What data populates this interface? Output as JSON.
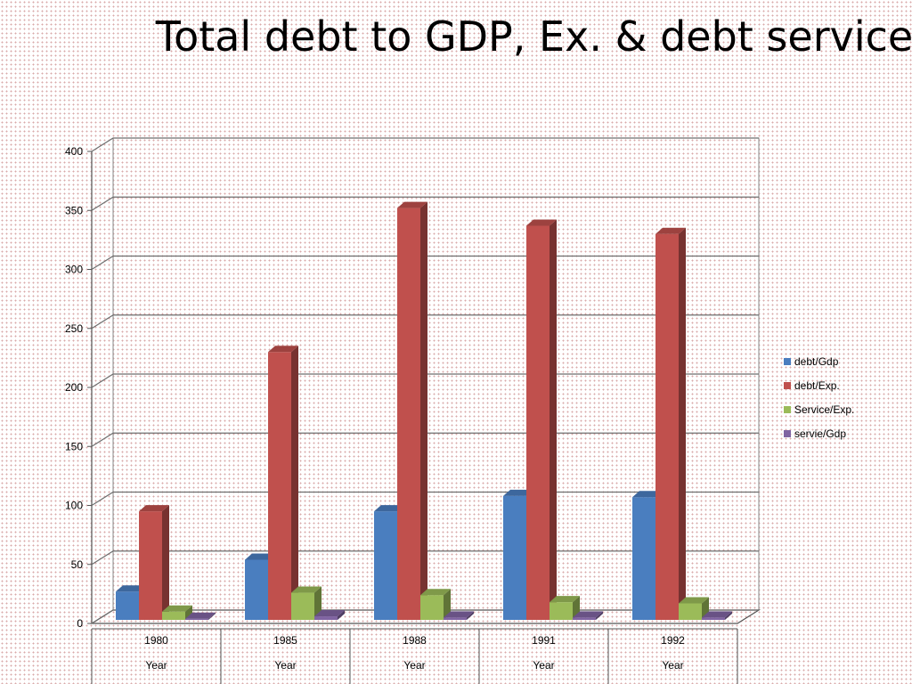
{
  "chart_data": {
    "type": "bar",
    "title": "Total debt to GDP, Ex. & debt service",
    "categories": [
      "1980",
      "1985",
      "1988",
      "1991",
      "1992"
    ],
    "category_group_label": "Year",
    "series": [
      {
        "name": "debt/Gdp",
        "color": "#4a7ebf",
        "values": [
          27,
          54,
          95,
          108,
          107
        ]
      },
      {
        "name": "debt/Exp.",
        "color": "#c0504d",
        "values": [
          95,
          230,
          352,
          337,
          330
        ]
      },
      {
        "name": "Service/Exp.",
        "color": "#9bbb59",
        "values": [
          10,
          26,
          24,
          18,
          17
        ]
      },
      {
        "name": "servie/Gdp",
        "color": "#8064a2",
        "values": [
          4,
          6,
          5,
          5,
          5
        ]
      }
    ],
    "ylim": [
      0,
      400
    ],
    "yticks": [
      0,
      50,
      100,
      150,
      200,
      250,
      300,
      350,
      400
    ],
    "grid": true,
    "legend_position": "right"
  }
}
